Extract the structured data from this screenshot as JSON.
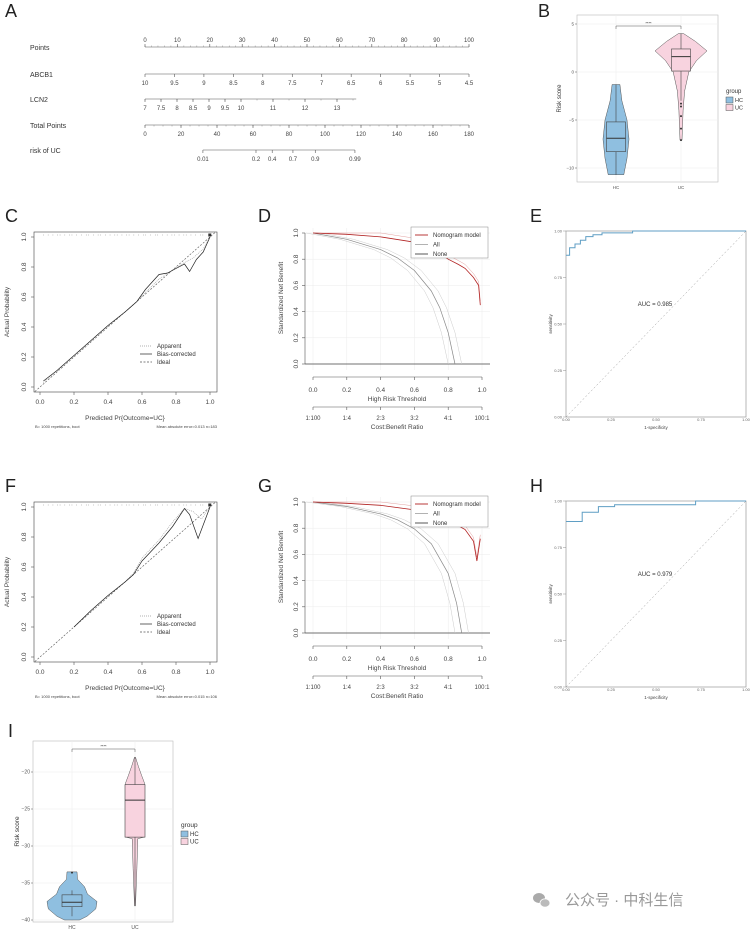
{
  "panel_labels": [
    "A",
    "B",
    "C",
    "D",
    "E",
    "F",
    "G",
    "H",
    "I"
  ],
  "watermark": "公众号 · 中科生信",
  "chart_data": [
    {
      "type": "nomogram",
      "rows": [
        {
          "label": "Points",
          "ticks": [
            "0",
            "10",
            "20",
            "30",
            "40",
            "50",
            "60",
            "70",
            "80",
            "90",
            "100"
          ]
        },
        {
          "label": "ABCB1",
          "ticks": [
            "10",
            "9.5",
            "9",
            "8.5",
            "8",
            "7.5",
            "7",
            "6.5",
            "6",
            "5.5",
            "5",
            "4.5"
          ]
        },
        {
          "label": "LCN2",
          "ticks": [
            "7",
            "7.5",
            "8",
            "8.5",
            "9",
            "9.5",
            "10",
            "11",
            "12",
            "13"
          ]
        },
        {
          "label": "Total Points",
          "ticks": [
            "0",
            "20",
            "40",
            "60",
            "80",
            "100",
            "120",
            "140",
            "160",
            "180"
          ]
        },
        {
          "label": "risk of UC",
          "ticks": [
            "0.01",
            "0.2",
            "0.4",
            "0.7",
            "0.9",
            "0.99"
          ]
        }
      ]
    },
    {
      "type": "violin",
      "ylabel": "Risk score",
      "yticks": [
        "5",
        "0",
        "-5",
        "-10"
      ],
      "ylim": [
        -11.5,
        5.5
      ],
      "significance": "****",
      "legend_title": "group",
      "groups": [
        {
          "name": "HC",
          "color": "#8fbfe0",
          "width": 0.5,
          "box": {
            "min": -10.7,
            "q1": -8.3,
            "median": -6.9,
            "q3": -5.2,
            "max": -1.3
          },
          "outliers": [],
          "density": [
            [
              -1.3,
              0.3
            ],
            [
              -3,
              0.45
            ],
            [
              -5,
              0.85
            ],
            [
              -7,
              1
            ],
            [
              -9,
              0.85
            ],
            [
              -10.7,
              0.6
            ]
          ]
        },
        {
          "name": "UC",
          "color": "#f8d3df",
          "width": 1.0,
          "box": {
            "min": -3.0,
            "q1": 0.1,
            "median": 1.6,
            "q3": 2.4,
            "max": 4.0
          },
          "outliers": [
            -3.3,
            -3.6,
            -4.6,
            -5.9,
            -7.1
          ],
          "density": [
            [
              4.0,
              0.1
            ],
            [
              3.2,
              0.55
            ],
            [
              2.2,
              1
            ],
            [
              1.2,
              0.6
            ],
            [
              0,
              0.3
            ],
            [
              -2,
              0.14
            ],
            [
              -4,
              0.08
            ],
            [
              -7.1,
              0.04
            ]
          ]
        }
      ]
    },
    {
      "type": "line",
      "subtype": "calibration",
      "xlabel": "Predicted Pr{Outcome=UC}",
      "ylabel": "Actual Probability",
      "xticks": [
        "0.0",
        "0.2",
        "0.4",
        "0.6",
        "0.8",
        "1.0"
      ],
      "yticks": [
        "0.0",
        "0.2",
        "0.4",
        "0.6",
        "0.8",
        "1.0"
      ],
      "legend": [
        "Apparent",
        "Bias-corrected",
        "Ideal"
      ],
      "note_left": "B= 1000 repetitions, boot",
      "note_right": "Mean absolute error=0.013 n=183",
      "series": {
        "apparent": [
          [
            0.02,
            0.03
          ],
          [
            0.1,
            0.11
          ],
          [
            0.2,
            0.21
          ],
          [
            0.3,
            0.31
          ],
          [
            0.4,
            0.41
          ],
          [
            0.5,
            0.5
          ],
          [
            0.57,
            0.57
          ],
          [
            0.62,
            0.63
          ],
          [
            0.7,
            0.72
          ],
          [
            0.78,
            0.78
          ],
          [
            0.85,
            0.83
          ],
          [
            0.9,
            0.86
          ],
          [
            0.96,
            0.92
          ],
          [
            1.0,
            1.0
          ]
        ],
        "bias_corrected": [
          [
            0.02,
            0.04
          ],
          [
            0.1,
            0.11
          ],
          [
            0.2,
            0.21
          ],
          [
            0.3,
            0.31
          ],
          [
            0.4,
            0.41
          ],
          [
            0.5,
            0.5
          ],
          [
            0.57,
            0.57
          ],
          [
            0.62,
            0.65
          ],
          [
            0.7,
            0.75
          ],
          [
            0.75,
            0.76
          ],
          [
            0.8,
            0.79
          ],
          [
            0.85,
            0.82
          ],
          [
            0.88,
            0.77
          ],
          [
            0.92,
            0.85
          ],
          [
            0.96,
            0.9
          ],
          [
            1.0,
            1.0
          ]
        ]
      }
    },
    {
      "type": "line",
      "subtype": "decision_curve",
      "xlabel": "High Risk Threshold",
      "ylabel": "Standardized Net Benefit",
      "xticks": [
        "0.0",
        "0.2",
        "0.4",
        "0.6",
        "0.8",
        "1.0"
      ],
      "yticks": [
        "0.0",
        "0.2",
        "0.4",
        "0.6",
        "0.8",
        "1.0"
      ],
      "cost_ticks": [
        "1:100",
        "1:4",
        "2:3",
        "3:2",
        "4:1",
        "100:1"
      ],
      "cost_label": "Cost:Benefit Ratio",
      "legend": [
        "Nomogram model",
        "All",
        "None"
      ],
      "series": {
        "nomogram": [
          [
            0,
            1
          ],
          [
            0.2,
            0.99
          ],
          [
            0.4,
            0.97
          ],
          [
            0.6,
            0.93
          ],
          [
            0.7,
            0.88
          ],
          [
            0.8,
            0.8
          ],
          [
            0.86,
            0.76
          ],
          [
            0.9,
            0.73
          ],
          [
            0.95,
            0.66
          ],
          [
            0.98,
            0.6
          ],
          [
            0.99,
            0.45
          ]
        ],
        "all": [
          [
            0,
            1
          ],
          [
            0.2,
            0.952
          ],
          [
            0.4,
            0.873
          ],
          [
            0.5,
            0.81
          ],
          [
            0.6,
            0.714
          ],
          [
            0.7,
            0.557
          ],
          [
            0.75,
            0.43
          ],
          [
            0.8,
            0.24
          ],
          [
            0.84,
            0
          ]
        ],
        "none": [
          [
            0,
            0
          ],
          [
            1,
            0
          ]
        ]
      }
    },
    {
      "type": "line",
      "subtype": "roc",
      "xlabel": "1-specificity",
      "ylabel": "sensitivity",
      "ticks": [
        "0.00",
        "0.25",
        "0.50",
        "0.75",
        "1.00"
      ],
      "auc_label": "AUC = 0.985",
      "curve": [
        [
          0,
          0.87
        ],
        [
          0.02,
          0.87
        ],
        [
          0.02,
          0.91
        ],
        [
          0.05,
          0.91
        ],
        [
          0.05,
          0.93
        ],
        [
          0.08,
          0.93
        ],
        [
          0.08,
          0.95
        ],
        [
          0.11,
          0.95
        ],
        [
          0.11,
          0.97
        ],
        [
          0.15,
          0.97
        ],
        [
          0.15,
          0.98
        ],
        [
          0.2,
          0.98
        ],
        [
          0.2,
          0.99
        ],
        [
          0.37,
          0.99
        ],
        [
          0.37,
          1.0
        ],
        [
          1,
          1
        ]
      ]
    },
    {
      "type": "line",
      "subtype": "calibration",
      "xlabel": "Predicted Pr{Outcome=UC}",
      "ylabel": "Actual Probability",
      "xticks": [
        "0.0",
        "0.2",
        "0.4",
        "0.6",
        "0.8",
        "1.0"
      ],
      "yticks": [
        "0.0",
        "0.2",
        "0.4",
        "0.6",
        "0.8",
        "1.0"
      ],
      "legend": [
        "Apparent",
        "Bias-corrected",
        "Ideal"
      ],
      "note_left": "B= 1000 repetitions, boot",
      "note_right": "Mean absolute error=0.015 n=106",
      "series": {
        "apparent": [
          [
            0.2,
            0.2
          ],
          [
            0.3,
            0.31
          ],
          [
            0.4,
            0.41
          ],
          [
            0.5,
            0.5
          ],
          [
            0.55,
            0.56
          ],
          [
            0.6,
            0.66
          ],
          [
            0.7,
            0.78
          ],
          [
            0.78,
            0.9
          ],
          [
            0.85,
            0.99
          ],
          [
            0.9,
            0.97
          ],
          [
            0.95,
            0.92
          ],
          [
            1.0,
            1.0
          ]
        ],
        "bias_corrected": [
          [
            0.2,
            0.2
          ],
          [
            0.3,
            0.31
          ],
          [
            0.4,
            0.41
          ],
          [
            0.5,
            0.5
          ],
          [
            0.55,
            0.55
          ],
          [
            0.6,
            0.64
          ],
          [
            0.7,
            0.76
          ],
          [
            0.78,
            0.87
          ],
          [
            0.85,
            0.99
          ],
          [
            0.88,
            0.95
          ],
          [
            0.93,
            0.79
          ],
          [
            0.96,
            0.88
          ],
          [
            1.0,
            1.0
          ]
        ]
      }
    },
    {
      "type": "line",
      "subtype": "decision_curve",
      "xlabel": "High Risk Threshold",
      "ylabel": "Standardized Net Benefit",
      "xticks": [
        "0.0",
        "0.2",
        "0.4",
        "0.6",
        "0.8",
        "1.0"
      ],
      "yticks": [
        "0.0",
        "0.2",
        "0.4",
        "0.6",
        "0.8",
        "1.0"
      ],
      "cost_ticks": [
        "1:100",
        "1:4",
        "2:3",
        "3:2",
        "4:1",
        "100:1"
      ],
      "cost_label": "Cost:Benefit Ratio",
      "legend": [
        "Nomogram model",
        "All",
        "None"
      ],
      "series": {
        "nomogram": [
          [
            0,
            1
          ],
          [
            0.2,
            0.99
          ],
          [
            0.4,
            0.975
          ],
          [
            0.6,
            0.94
          ],
          [
            0.7,
            0.9
          ],
          [
            0.8,
            0.86
          ],
          [
            0.9,
            0.79
          ],
          [
            0.95,
            0.7
          ],
          [
            0.97,
            0.55
          ],
          [
            0.99,
            0.72
          ]
        ],
        "all": [
          [
            0,
            1
          ],
          [
            0.2,
            0.966
          ],
          [
            0.4,
            0.909
          ],
          [
            0.5,
            0.864
          ],
          [
            0.6,
            0.795
          ],
          [
            0.7,
            0.682
          ],
          [
            0.8,
            0.455
          ],
          [
            0.85,
            0.227
          ],
          [
            0.88,
            0
          ]
        ],
        "none": [
          [
            0,
            0
          ],
          [
            1,
            0
          ]
        ]
      }
    },
    {
      "type": "line",
      "subtype": "roc",
      "xlabel": "1-specificity",
      "ylabel": "sensitivity",
      "ticks": [
        "0.00",
        "0.25",
        "0.50",
        "0.75",
        "1.00"
      ],
      "auc_label": "AUC = 0.979",
      "curve": [
        [
          0,
          0.89
        ],
        [
          0.09,
          0.89
        ],
        [
          0.09,
          0.94
        ],
        [
          0.18,
          0.94
        ],
        [
          0.18,
          0.97
        ],
        [
          0.27,
          0.97
        ],
        [
          0.27,
          0.98
        ],
        [
          0.72,
          0.98
        ],
        [
          0.72,
          1
        ],
        [
          1,
          1
        ]
      ]
    },
    {
      "type": "violin",
      "ylabel": "Risk score",
      "yticks": [
        "-20",
        "-25",
        "-30",
        "-35",
        "-40"
      ],
      "ylim": [
        -41,
        -16
      ],
      "significance": "****",
      "legend_title": "group",
      "groups": [
        {
          "name": "HC",
          "color": "#8fbfe0",
          "width": 1.0,
          "box": {
            "min": -39.5,
            "q1": -38.2,
            "median": -37.6,
            "q3": -36.6,
            "max": -36.0
          },
          "outliers": [
            -33.6
          ],
          "density": [
            [
              -33.5,
              0.2
            ],
            [
              -34.5,
              0.22
            ],
            [
              -35.5,
              0.5
            ],
            [
              -36.5,
              0.62
            ],
            [
              -37.5,
              1.0
            ],
            [
              -38.5,
              0.95
            ],
            [
              -39.5,
              0.6
            ],
            [
              -40,
              0.3
            ]
          ]
        },
        {
          "name": "UC",
          "color": "#f8d3df",
          "width": 0.38,
          "box": {
            "min": -38.1,
            "q1": -28.8,
            "median": -23.8,
            "q3": -21.7,
            "max": -18.0
          },
          "outliers": [],
          "density": [
            [
              -18,
              0.05
            ],
            [
              -19.2,
              0.35
            ],
            [
              -20.5,
              0.7
            ],
            [
              -21.5,
              1
            ],
            [
              -24,
              1
            ],
            [
              -28.8,
              1
            ],
            [
              -29,
              0.3
            ],
            [
              -33,
              0.2
            ],
            [
              -38.1,
              0.05
            ]
          ]
        }
      ]
    }
  ]
}
